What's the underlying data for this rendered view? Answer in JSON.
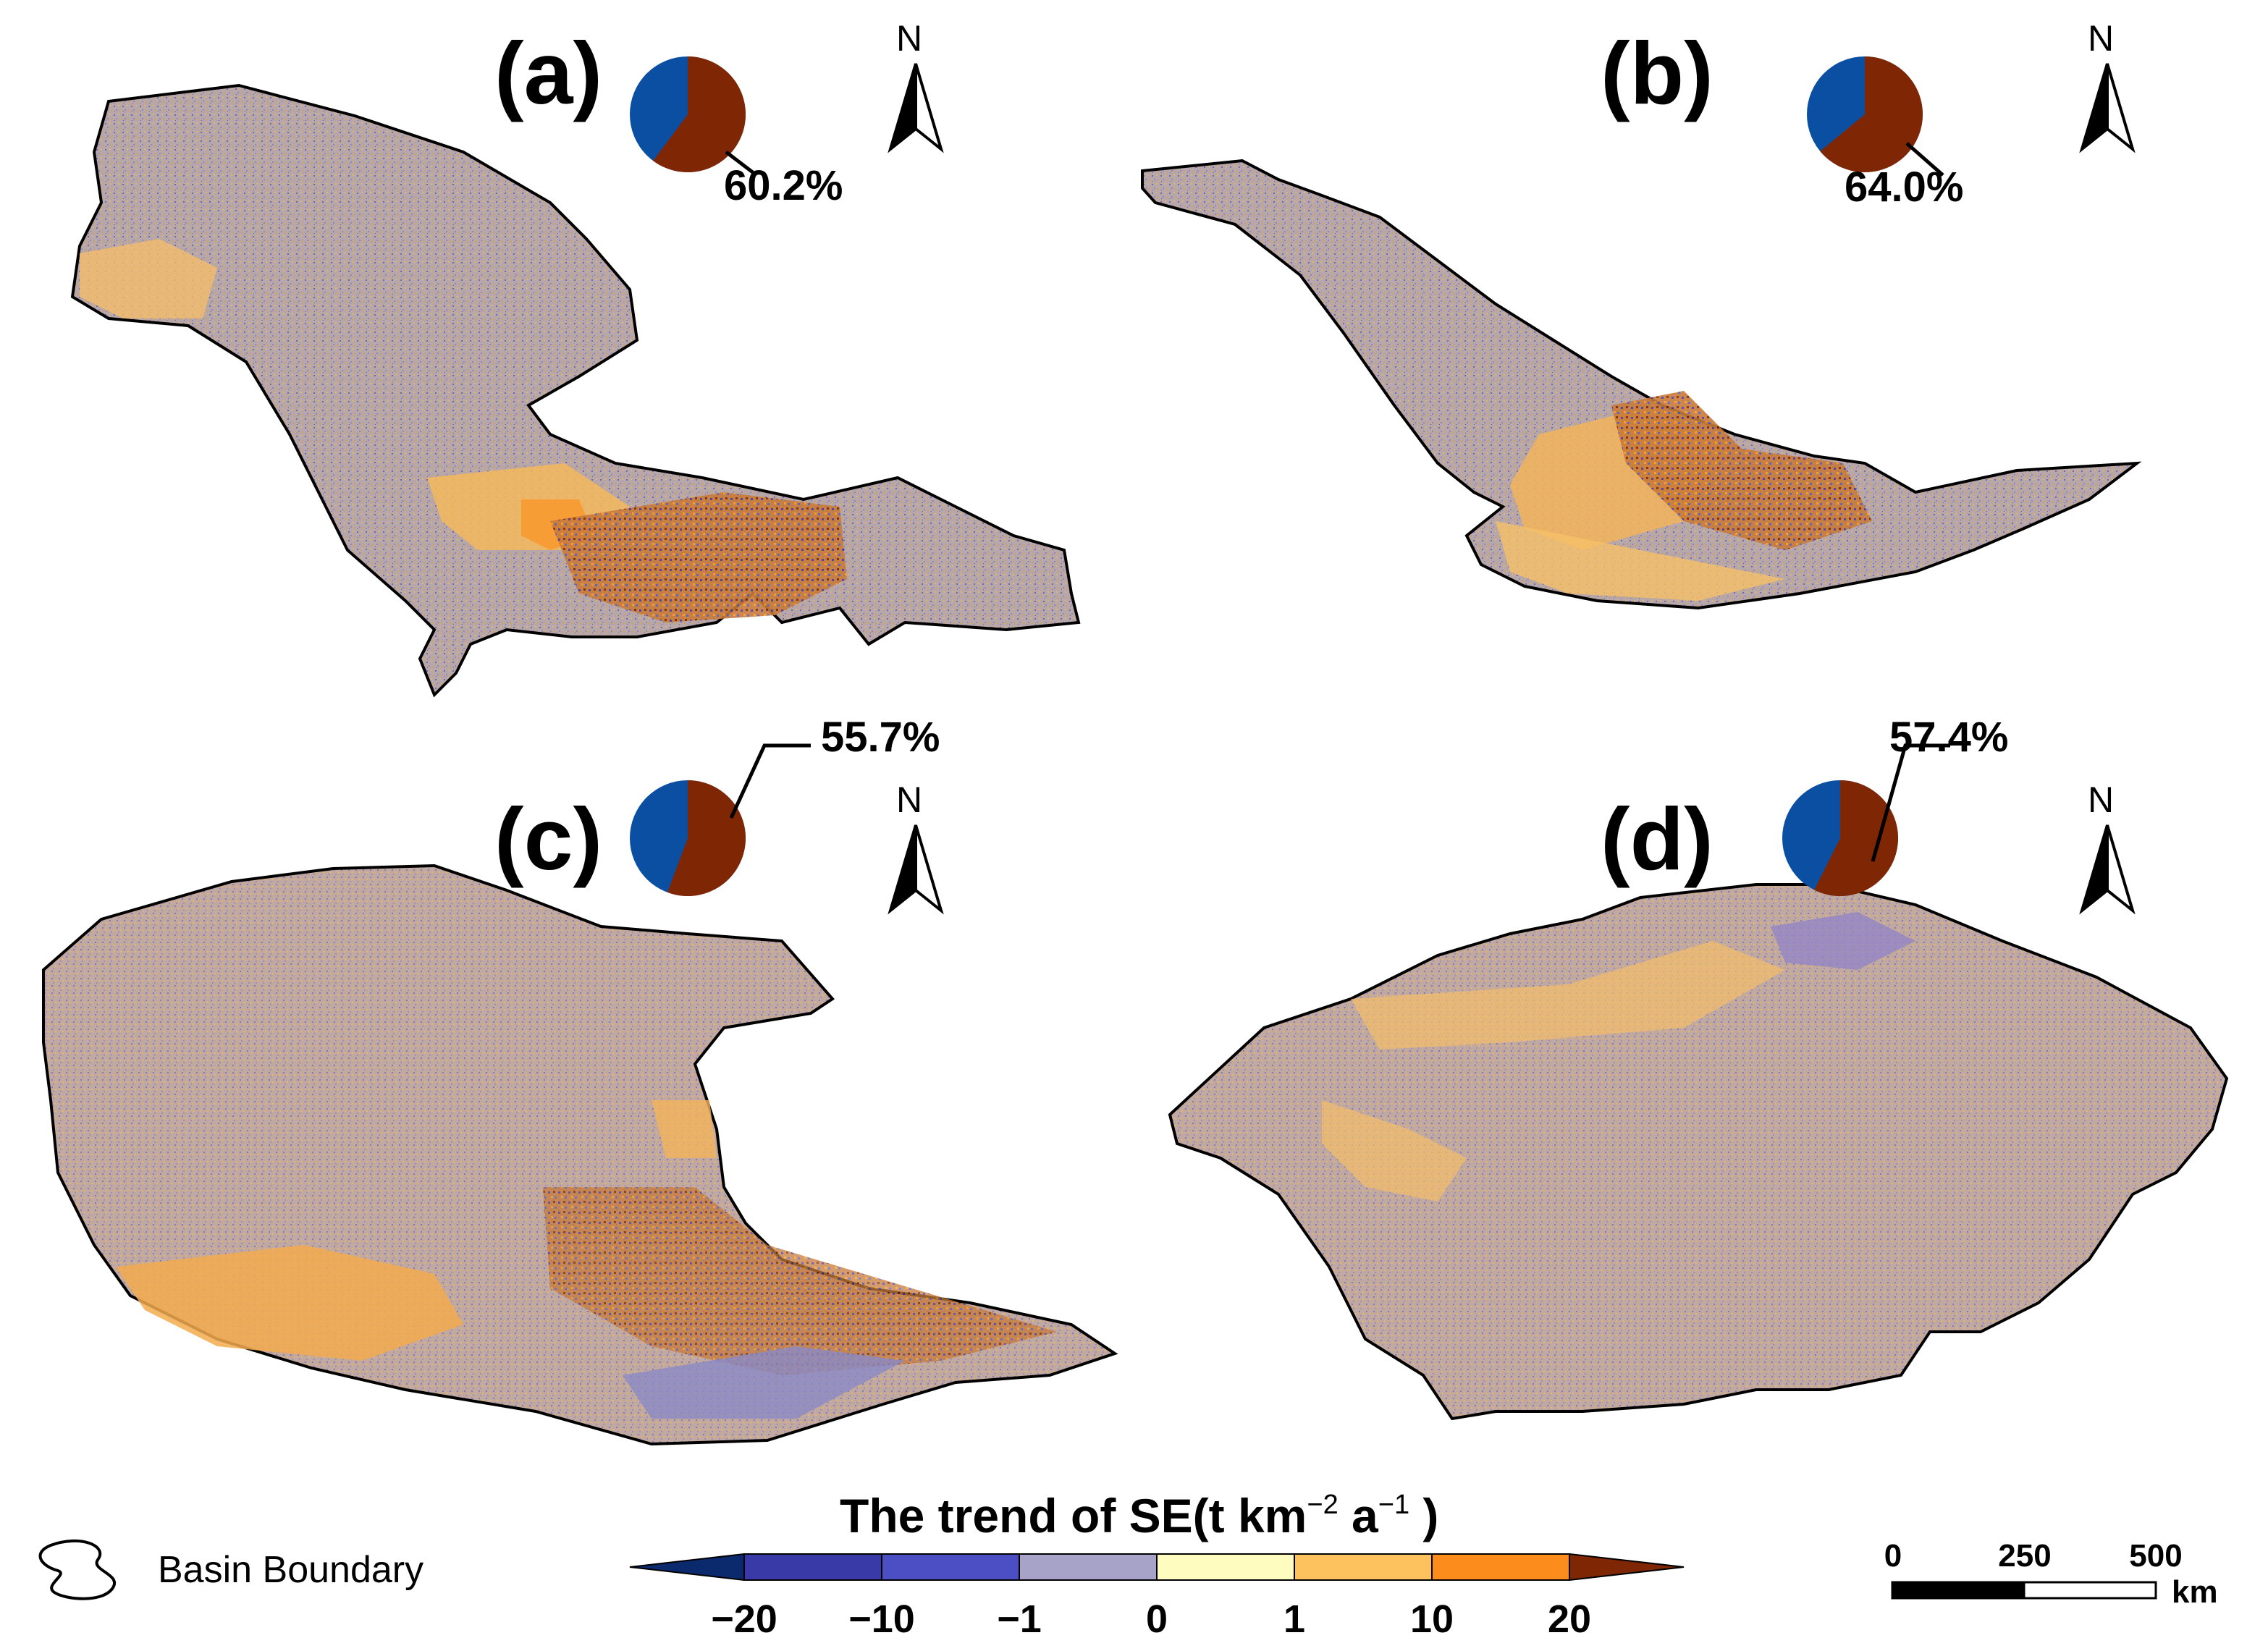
{
  "panels": [
    {
      "label": "(a)",
      "pct": "60.2%",
      "pct_value": 60.2
    },
    {
      "label": "(b)",
      "pct": "64.0%",
      "pct_value": 64.0
    },
    {
      "label": "(c)",
      "pct": "55.7%",
      "pct_value": 55.7
    },
    {
      "label": "(d)",
      "pct": "57.4%",
      "pct_value": 57.4
    }
  ],
  "north_label": "N",
  "legend": {
    "title_main": "The trend of SE(t km",
    "title_sup1": "−2",
    "title_mid": " a",
    "title_sup2": "−1",
    "title_end": " )",
    "ticks": [
      "−20",
      "−10",
      "−1",
      "0",
      "1",
      "10",
      "20"
    ],
    "colors": [
      "#0b2a6e",
      "#3a39a8",
      "#4c4fc4",
      "#a7a3c8",
      "#fefdbf",
      "#fdc25d",
      "#fc8d1c",
      "#7f2704"
    ]
  },
  "basin_legend": {
    "label": "Basin Boundary"
  },
  "scale_bar": {
    "labels": [
      "0",
      "250",
      "500"
    ],
    "unit": "km"
  },
  "pie_colors": {
    "positive": "#7f2704",
    "negative": "#0b4fa3"
  },
  "map_colors": {
    "base": "#b6a3a6",
    "warm": "#f9be5e",
    "orange": "#f79a30",
    "blue": "#5a5fb3",
    "dark": "#8a3420"
  }
}
